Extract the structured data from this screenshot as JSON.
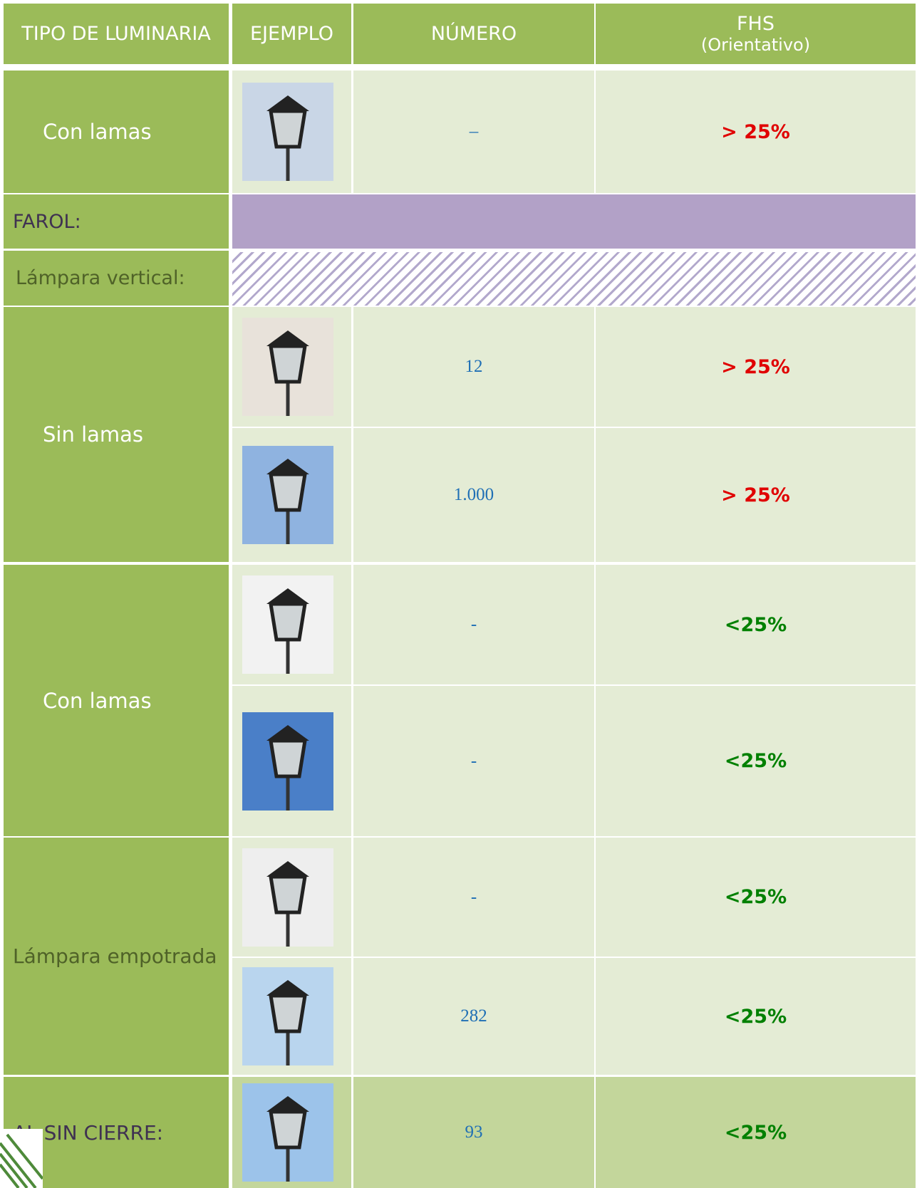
{
  "header": {
    "type": "TIPO DE LUMINARIA",
    "example": "EJEMPLO",
    "number": "NÚMERO",
    "fhs": "FHS",
    "fhs_note": "(Orientativo)"
  },
  "rows": [
    {
      "label": "Con lamas",
      "items": [
        {
          "number": "–",
          "fhs": "> 25%"
        }
      ]
    },
    {
      "title": "FAROL:"
    },
    {
      "title": "Lámpara vertical:"
    },
    {
      "label": "Sin lamas",
      "items": [
        {
          "number": "12",
          "fhs": "> 25%"
        },
        {
          "number": "1.000",
          "fhs": "> 25%"
        }
      ]
    },
    {
      "label": "Con lamas",
      "items": [
        {
          "number": "-",
          "fhs": "<25%"
        },
        {
          "number": "-",
          "fhs": "<25%"
        }
      ]
    },
    {
      "label": "Lámpara empotrada",
      "items": [
        {
          "number": "-",
          "fhs": "<25%"
        },
        {
          "number": "282",
          "fhs": "<25%"
        }
      ]
    },
    {
      "label": "AL SIN CIERRE:",
      "items": [
        {
          "number": "93",
          "fhs": "<25%"
        }
      ]
    }
  ]
}
